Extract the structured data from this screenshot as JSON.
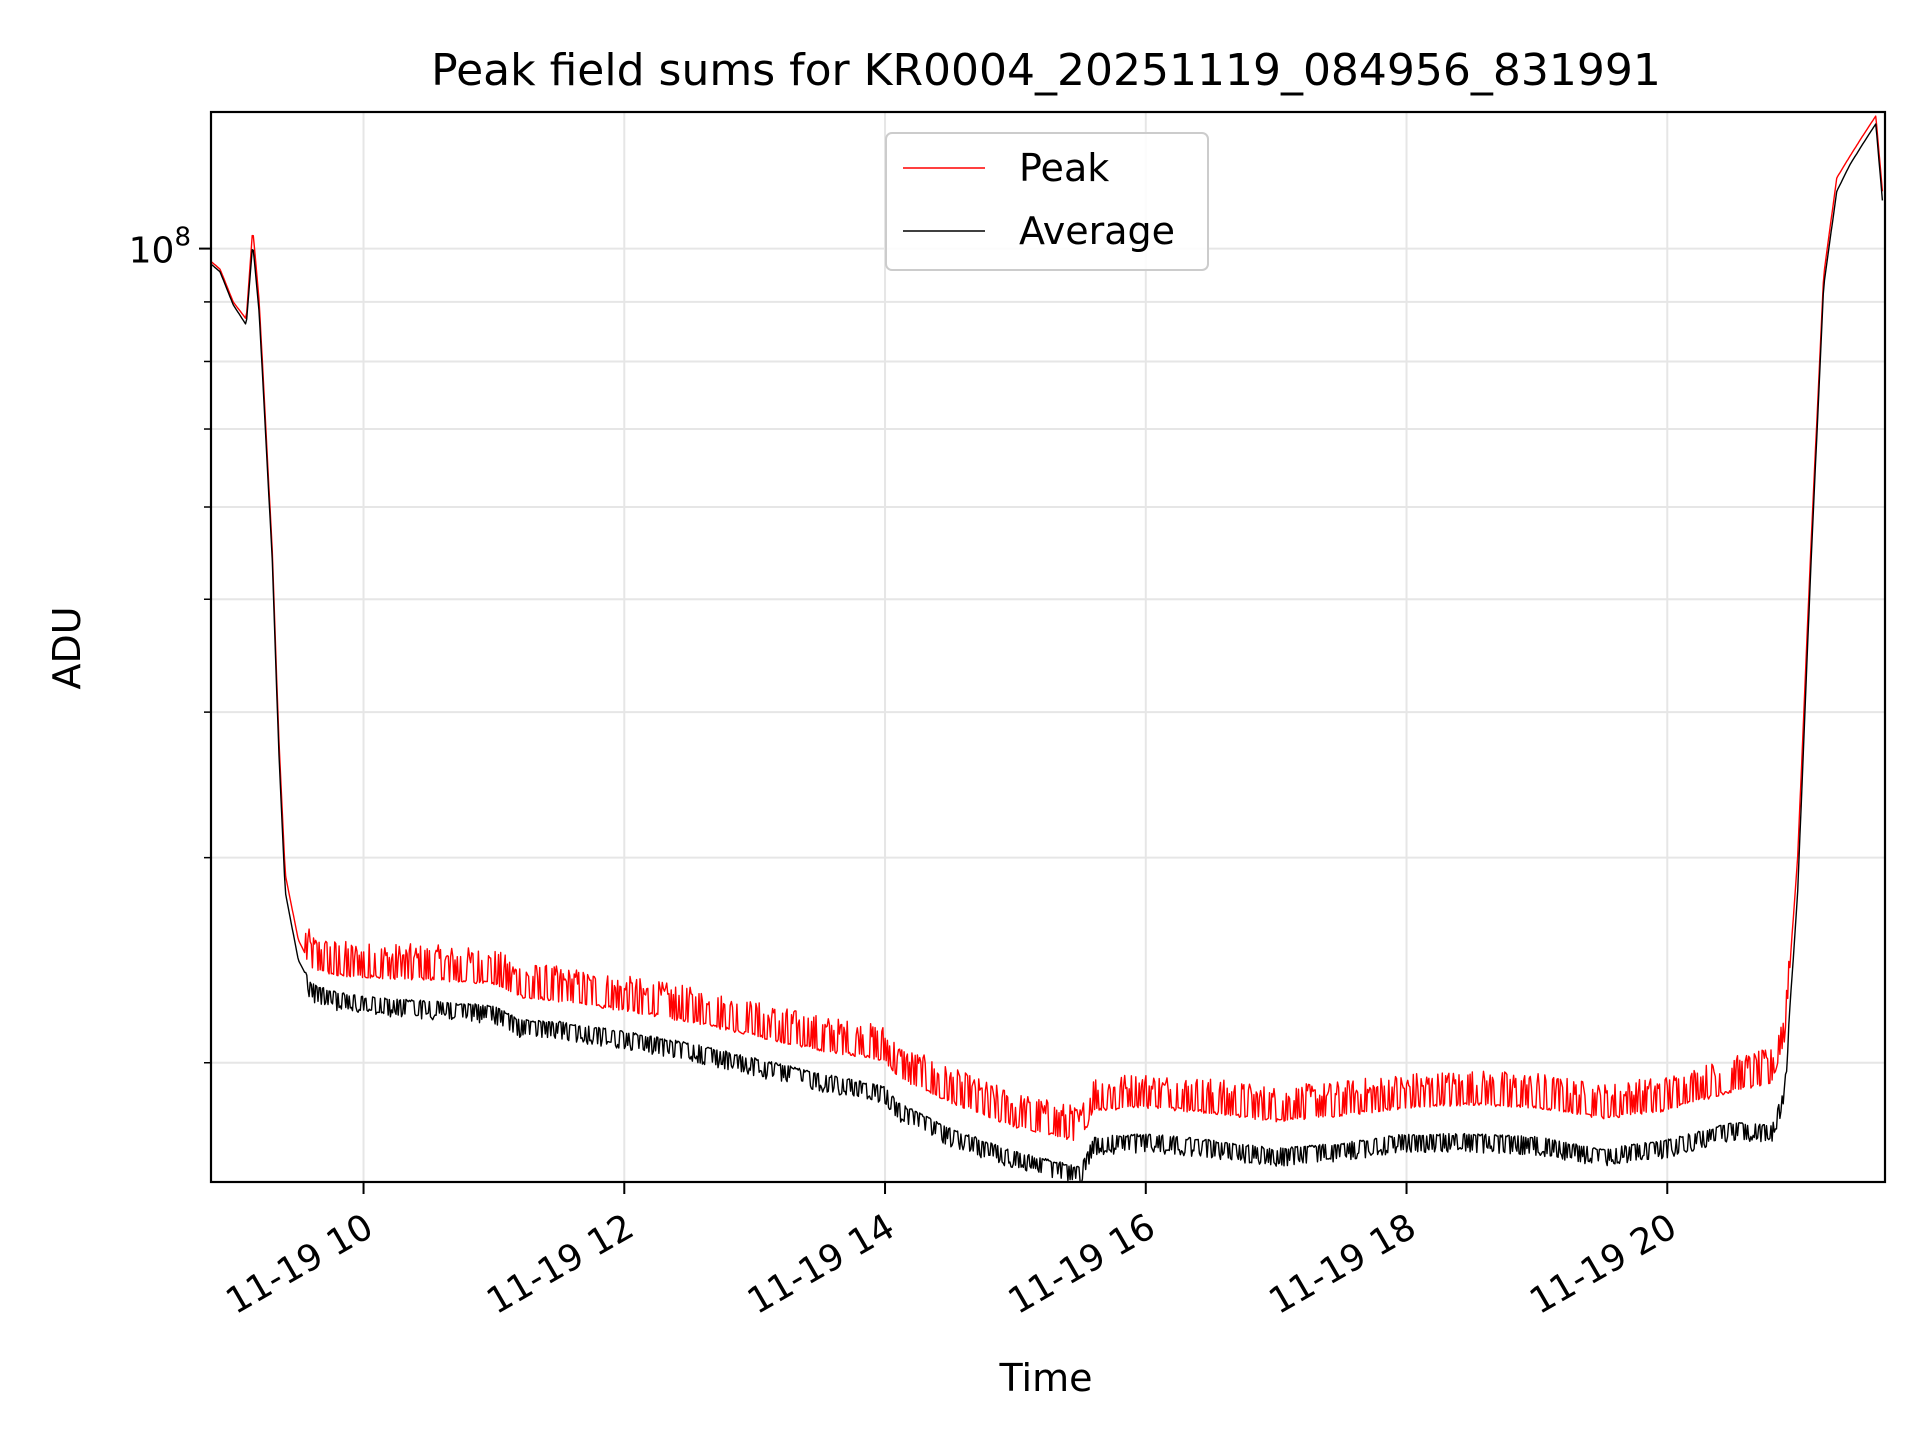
{
  "chart_data": {
    "type": "line",
    "title": "Peak field sums for KR0004_20251119_084956_831991",
    "xlabel": "Time",
    "ylabel": "ADU",
    "y_scale": "log",
    "xlim_hours": [
      8.83,
      21.67
    ],
    "ylim": [
      15800000,
      131000000
    ],
    "x_ticks": [
      {
        "value": 10,
        "label": "11-19 10"
      },
      {
        "value": 12,
        "label": "11-19 12"
      },
      {
        "value": 14,
        "label": "11-19 14"
      },
      {
        "value": 16,
        "label": "11-19 16"
      },
      {
        "value": 18,
        "label": "11-19 18"
      },
      {
        "value": 20,
        "label": "11-19 20"
      }
    ],
    "y_major_tick": {
      "value": 100000000,
      "base": "10",
      "exponent": "8"
    },
    "y_minor_ticks": [
      20000000,
      30000000,
      40000000,
      50000000,
      60000000,
      70000000,
      80000000,
      90000000
    ],
    "grid": true,
    "legend_position": "top-center",
    "series": [
      {
        "name": "Peak",
        "color": "#ff0000",
        "hours": [
          8.83,
          8.9,
          9.0,
          9.1,
          9.15,
          9.2,
          9.3,
          9.35,
          9.4,
          9.5,
          9.6,
          9.8,
          10.0,
          10.5,
          11.0,
          11.2,
          11.5,
          12.0,
          12.5,
          13.0,
          13.5,
          14.0,
          14.1,
          14.5,
          15.0,
          15.5,
          15.6,
          16.0,
          16.5,
          17.0,
          17.5,
          18.0,
          18.5,
          19.0,
          19.5,
          20.0,
          20.5,
          20.8,
          20.9,
          21.0,
          21.1,
          21.2,
          21.3,
          21.4,
          21.5,
          21.6,
          21.65
        ],
        "values": [
          97500000,
          96000000,
          90000000,
          87000000,
          104000000,
          90000000,
          55000000,
          38000000,
          29000000,
          25500000,
          24200000,
          23900000,
          23800000,
          23700000,
          23500000,
          22900000,
          22700000,
          22300000,
          21800000,
          21200000,
          20600000,
          20200000,
          19500000,
          18600000,
          17700000,
          17200000,
          18300000,
          18400000,
          18200000,
          17900000,
          18100000,
          18400000,
          18500000,
          18400000,
          18000000,
          18300000,
          19000000,
          19300000,
          21000000,
          30000000,
          55000000,
          95000000,
          115000000,
          120000000,
          125000000,
          130000000,
          112000000
        ]
      },
      {
        "name": "Average",
        "color": "#000000",
        "hours": [
          8.83,
          8.9,
          9.0,
          9.1,
          9.15,
          9.2,
          9.3,
          9.35,
          9.4,
          9.5,
          9.6,
          9.8,
          10.0,
          10.5,
          11.0,
          11.2,
          11.5,
          12.0,
          12.5,
          13.0,
          13.5,
          14.0,
          14.1,
          14.5,
          15.0,
          15.5,
          15.6,
          16.0,
          16.5,
          17.0,
          17.5,
          18.0,
          18.5,
          19.0,
          19.5,
          20.0,
          20.5,
          20.8,
          20.9,
          21.0,
          21.1,
          21.2,
          21.3,
          21.4,
          21.5,
          21.6,
          21.65
        ],
        "values": [
          97000000,
          95500000,
          89500000,
          86000000,
          101000000,
          88000000,
          54000000,
          37000000,
          28000000,
          24500000,
          23300000,
          22900000,
          22700000,
          22500000,
          22300000,
          21700000,
          21600000,
          21200000,
          20700000,
          20100000,
          19500000,
          19000000,
          18400000,
          17500000,
          16700000,
          16200000,
          17200000,
          17300000,
          17100000,
          16800000,
          17000000,
          17300000,
          17300000,
          17200000,
          16800000,
          17100000,
          17700000,
          17600000,
          19000000,
          28000000,
          53000000,
          93000000,
          112000000,
          118000000,
          123000000,
          128000000,
          110000000
        ]
      }
    ]
  }
}
